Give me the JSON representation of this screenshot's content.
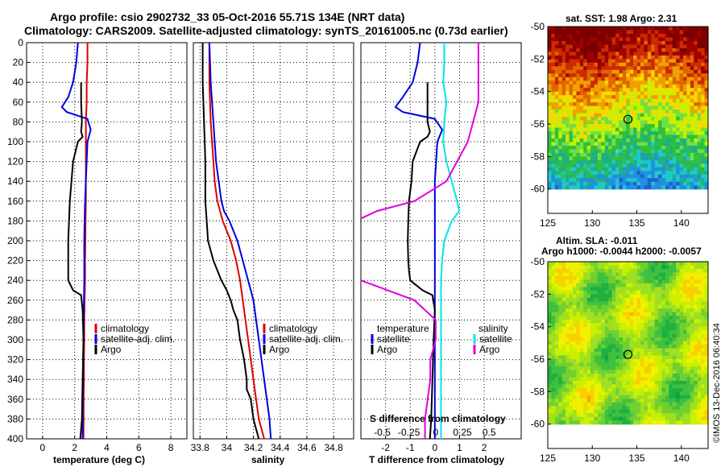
{
  "title_line1": "Argo profile: csio 2902732_33 05-Oct-2016 55.71S 134E (NRT data)",
  "title_line2": "Climatology: CARS2009. Satellite-adjusted climatology: synTS_20161005.nc (0.73d earlier)",
  "credit": "©IMOS 13-Dec-2016 06:40:34",
  "colors": {
    "climatology": "#dd0000",
    "satellite": "#0000dd",
    "argo": "#000000",
    "sat_salinity": "#00e5e5",
    "clim_salinity": "#dd00dd"
  },
  "chart_data": [
    {
      "type": "line",
      "name": "temperature",
      "xlabel": "temperature (deg C)",
      "ylabel": "",
      "xlim": [
        -1,
        9
      ],
      "ylim": [
        400,
        0
      ],
      "xticks": [
        "0",
        "2",
        "4",
        "6",
        "8"
      ],
      "xtick_values": [
        0,
        2,
        4,
        6,
        8
      ],
      "yticks": [
        "0",
        "20",
        "40",
        "60",
        "80",
        "100",
        "120",
        "140",
        "160",
        "180",
        "200",
        "220",
        "240",
        "260",
        "280",
        "300",
        "320",
        "340",
        "360",
        "380",
        "400"
      ],
      "ytick_values": [
        0,
        20,
        40,
        60,
        80,
        100,
        120,
        140,
        160,
        180,
        200,
        220,
        240,
        260,
        280,
        300,
        320,
        340,
        360,
        380,
        400
      ],
      "grid": true,
      "legend": [
        "climatology",
        "satellite-adj. clim.",
        "Argo"
      ],
      "series": [
        {
          "name": "climatology",
          "color": "#dd0000",
          "x": [
            2.8,
            2.8,
            2.75,
            2.75,
            2.7,
            2.7,
            2.7,
            2.7,
            2.7,
            2.68,
            2.67,
            2.65,
            2.65,
            2.62,
            2.6,
            2.6,
            2.58,
            2.58,
            2.56,
            2.56,
            2.55
          ],
          "y": [
            0,
            20,
            40,
            60,
            80,
            100,
            120,
            140,
            160,
            180,
            200,
            220,
            240,
            260,
            280,
            300,
            320,
            340,
            360,
            380,
            400
          ]
        },
        {
          "name": "satellite-adj. clim.",
          "color": "#0000dd",
          "x": [
            2.2,
            2.1,
            1.9,
            1.6,
            1.2,
            1.5,
            2.8,
            3.0,
            2.8,
            2.75,
            2.7,
            2.65,
            2.62,
            2.6,
            2.6,
            2.6,
            2.58,
            2.56,
            2.55,
            2.52,
            2.5
          ],
          "y": [
            0,
            20,
            40,
            55,
            65,
            70,
            77,
            88,
            100,
            120,
            140,
            160,
            180,
            200,
            220,
            240,
            260,
            280,
            300,
            340,
            400
          ]
        },
        {
          "name": "Argo",
          "color": "#000000",
          "x": [
            2.4,
            2.4,
            2.45,
            2.4,
            2.5,
            2.2,
            1.9,
            1.8,
            1.7,
            1.65,
            1.6,
            1.6,
            1.6,
            1.6,
            1.9,
            2.4,
            2.5,
            2.55,
            2.5,
            2.45,
            2.4,
            2.35
          ],
          "y": [
            40,
            60,
            80,
            90,
            95,
            100,
            120,
            140,
            160,
            180,
            200,
            220,
            230,
            240,
            250,
            255,
            270,
            300,
            340,
            380,
            390,
            400
          ]
        }
      ]
    },
    {
      "type": "line",
      "name": "salinity",
      "xlabel": "salinity",
      "xlim": [
        33.75,
        34.95
      ],
      "ylim": [
        400,
        0
      ],
      "xticks": [
        "33.8",
        "34",
        "34.2",
        "34.4",
        "34.6",
        "34.8"
      ],
      "xtick_values": [
        33.8,
        34.0,
        34.2,
        34.4,
        34.6,
        34.8
      ],
      "grid": true,
      "legend": [
        "climatology",
        "satellite-adj. clim.",
        "Argo"
      ],
      "series": [
        {
          "name": "climatology",
          "color": "#dd0000",
          "x": [
            33.87,
            33.87,
            33.88,
            33.89,
            33.9,
            33.91,
            33.93,
            33.95,
            33.97,
            34.03,
            34.07,
            34.1,
            34.12,
            34.14,
            34.16,
            34.18,
            34.2,
            34.22,
            34.24,
            34.26,
            34.28
          ],
          "y": [
            0,
            40,
            80,
            100,
            120,
            140,
            160,
            170,
            180,
            200,
            220,
            240,
            260,
            280,
            300,
            320,
            340,
            360,
            380,
            390,
            400
          ]
        },
        {
          "name": "satellite-adj. clim.",
          "color": "#0000dd",
          "x": [
            33.87,
            33.88,
            33.9,
            33.91,
            33.92,
            33.94,
            33.96,
            33.98,
            34.02,
            34.08,
            34.12,
            34.16,
            34.2,
            34.22,
            34.24,
            34.26,
            34.28,
            34.3,
            34.32,
            34.33
          ],
          "y": [
            0,
            40,
            80,
            100,
            120,
            140,
            160,
            170,
            180,
            200,
            220,
            240,
            260,
            280,
            300,
            320,
            340,
            360,
            380,
            400
          ]
        },
        {
          "name": "Argo",
          "color": "#000000",
          "x": [
            33.82,
            33.82,
            33.83,
            33.84,
            33.84,
            33.85,
            33.86,
            33.9,
            33.96,
            34.0,
            34.03,
            34.05,
            34.08,
            34.1,
            34.13,
            34.15,
            34.15,
            34.18,
            34.2,
            34.22,
            34.24
          ],
          "y": [
            0,
            40,
            80,
            120,
            160,
            180,
            200,
            220,
            240,
            250,
            260,
            270,
            280,
            300,
            320,
            340,
            350,
            360,
            380,
            390,
            400
          ]
        }
      ]
    },
    {
      "type": "line",
      "name": "difference",
      "xlabel": "T difference from climatology",
      "xlim": [
        -3,
        3.5
      ],
      "ylim": [
        400,
        0
      ],
      "xticks": [
        "-2",
        "-1",
        "0",
        "1",
        "2"
      ],
      "xtick_values": [
        -2,
        -1,
        0,
        1,
        2
      ],
      "secondary_axis_label": "S difference from climatology",
      "secondary_xticks": [
        "-0.5",
        "-0.25",
        "0",
        "0.25",
        "0.5"
      ],
      "grid": true,
      "legend_temperature_title": "temperature",
      "legend_salinity_title": "salinity",
      "legend": [
        "satellite",
        "Argo"
      ],
      "series": [
        {
          "name": "temperature satellite",
          "color": "#0000dd",
          "x": [
            -0.6,
            -0.7,
            -0.9,
            -1.3,
            -1.6,
            -1.3,
            0.0,
            0.3,
            0.1,
            0.05,
            0.0,
            0.0,
            0.0,
            0.0,
            0.0,
            0.0,
            0.0,
            0.0,
            0.0,
            0.0,
            0.0
          ],
          "y": [
            0,
            20,
            40,
            55,
            65,
            70,
            77,
            88,
            100,
            120,
            140,
            160,
            180,
            200,
            220,
            240,
            260,
            300,
            340,
            380,
            400
          ]
        },
        {
          "name": "temperature Argo",
          "color": "#000000",
          "x": [
            -0.3,
            -0.3,
            -0.3,
            -0.2,
            -0.3,
            -0.6,
            -0.9,
            -0.95,
            -1.05,
            -1.08,
            -1.1,
            -1.08,
            -1.05,
            -1.0,
            -0.5,
            -0.1,
            0.0,
            -0.05,
            -0.1,
            -0.15,
            -0.2
          ],
          "y": [
            40,
            60,
            80,
            90,
            95,
            100,
            120,
            140,
            160,
            180,
            200,
            220,
            230,
            240,
            250,
            255,
            270,
            300,
            340,
            380,
            400
          ]
        },
        {
          "name": "salinity satellite",
          "color": "#00e5e5",
          "x": [
            0.08,
            0.08,
            0.07,
            0.1,
            0.08,
            0.07,
            0.1,
            0.15,
            0.2,
            0.22,
            0.15,
            0.08,
            0.06,
            0.05,
            0.05,
            0.05,
            0.05,
            0.05,
            0.05,
            0.05,
            0.05
          ],
          "y": [
            0,
            20,
            40,
            60,
            80,
            100,
            120,
            140,
            160,
            170,
            180,
            200,
            220,
            240,
            260,
            280,
            300,
            320,
            340,
            360,
            400
          ]
        },
        {
          "name": "salinity Argo",
          "color": "#dd00dd",
          "x": [
            0.4,
            0.4,
            0.4,
            0.4,
            0.35,
            0.3,
            0.2,
            0.1,
            -0.2,
            -0.55,
            -0.75,
            -0.85,
            -0.85,
            -0.7,
            -0.2,
            0.0,
            0.0,
            -0.05,
            -0.05,
            -0.1,
            -0.1
          ],
          "y": [
            0,
            20,
            40,
            60,
            80,
            100,
            120,
            140,
            160,
            170,
            180,
            200,
            220,
            240,
            260,
            280,
            300,
            320,
            340,
            380,
            400
          ]
        }
      ]
    },
    {
      "type": "heatmap",
      "name": "sst_map",
      "title": "sat. SST: 1.98 Argo: 2.31",
      "xlim": [
        125,
        143
      ],
      "ylim": [
        -61.5,
        -50
      ],
      "xticks": [
        "125",
        "130",
        "135",
        "140"
      ],
      "xtick_values": [
        125,
        130,
        135,
        140
      ],
      "yticks": [
        "-50",
        "-52",
        "-54",
        "-56",
        "-58",
        "-60"
      ],
      "ytick_values": [
        -50,
        -52,
        -54,
        -56,
        -58,
        -60
      ],
      "marker": {
        "lon": 134,
        "lat": -55.71
      }
    },
    {
      "type": "heatmap",
      "name": "sla_map",
      "title_line1": "Altim. SLA: -0.011",
      "title_line2": "Argo h1000: -0.0044 h2000: -0.0057",
      "xlim": [
        125,
        143
      ],
      "ylim": [
        -61.5,
        -50
      ],
      "xticks": [
        "125",
        "130",
        "135",
        "140"
      ],
      "xtick_values": [
        125,
        130,
        135,
        140
      ],
      "yticks": [
        "-50",
        "-52",
        "-54",
        "-56",
        "-58",
        "-60"
      ],
      "ytick_values": [
        -50,
        -52,
        -54,
        -56,
        -58,
        -60
      ],
      "marker": {
        "lon": 134,
        "lat": -55.71
      }
    }
  ]
}
